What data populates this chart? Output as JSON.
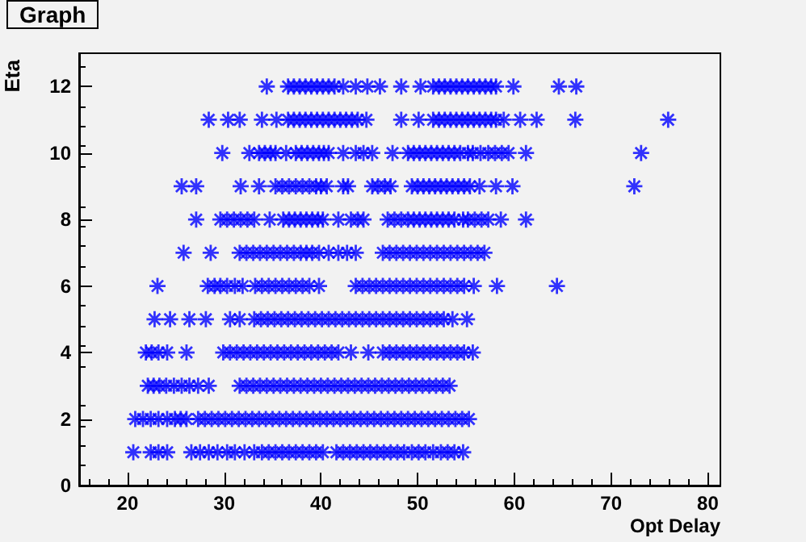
{
  "chart_data": {
    "type": "scatter",
    "title": "Graph",
    "xlabel": "Opt Delay",
    "ylabel": "Eta",
    "marker": "cross",
    "grid": false,
    "xlim": [
      15,
      81.3
    ],
    "xticks": [
      20,
      30,
      40,
      50,
      60,
      70,
      80
    ],
    "ylim": [
      0,
      13
    ],
    "yticks": [
      0,
      2,
      4,
      6,
      8,
      10,
      12
    ],
    "series": [
      {
        "color": "#0000ff",
        "x": [
          34.4,
          36.6,
          37.2,
          37.8,
          38.4,
          39,
          39.6,
          40.2,
          40.8,
          41.4,
          42.3,
          43.6,
          44.8,
          46.1,
          48.3,
          50.3,
          51.6,
          52.2,
          52.8,
          53.4,
          54,
          54.6,
          55.2,
          55.8,
          56.4,
          57,
          57.6,
          58.1,
          59.9,
          64.6,
          66.4
        ],
        "values": [
          12,
          12,
          12,
          12,
          12,
          12,
          12,
          12,
          12,
          12,
          12,
          12,
          12,
          12,
          12,
          12,
          12,
          12,
          12,
          12,
          12,
          12,
          12,
          12,
          12,
          12,
          12,
          12,
          12,
          12,
          12
        ]
      },
      {
        "color": "#0000ff",
        "x": [
          28.4,
          30.4,
          31.6,
          33.9,
          35.4,
          36.6,
          37.2,
          37.8,
          38.4,
          39,
          39.6,
          40.2,
          40.8,
          41.4,
          42,
          42.6,
          43.2,
          43.8,
          44.7,
          48.3,
          50.1,
          51.6,
          52.2,
          52.8,
          53.4,
          54,
          54.6,
          55.2,
          55.8,
          56.4,
          57,
          57.6,
          58.1,
          58.9,
          60.6,
          62.3,
          66.3,
          75.9
        ],
        "values": [
          11,
          11,
          11,
          11,
          11,
          11,
          11,
          11,
          11,
          11,
          11,
          11,
          11,
          11,
          11,
          11,
          11,
          11,
          11,
          11,
          11,
          11,
          11,
          11,
          11,
          11,
          11,
          11,
          11,
          11,
          11,
          11,
          11,
          11,
          11,
          11,
          11,
          11
        ]
      },
      {
        "color": "#0000ff",
        "x": [
          29.8,
          32.6,
          33.6,
          34.2,
          34.8,
          35.3,
          36.4,
          37.4,
          38,
          38.6,
          39.2,
          39.8,
          40.3,
          40.8,
          42.3,
          43.6,
          44.4,
          45.3,
          47.4,
          49,
          49.6,
          50.2,
          50.8,
          51.4,
          52,
          52.6,
          53.2,
          53.8,
          54.4,
          55.2,
          55.7,
          56.5,
          57.3,
          58,
          58.7,
          59.4,
          61.2,
          73.1
        ],
        "values": [
          10,
          10,
          10,
          10,
          10,
          10,
          10,
          10,
          10,
          10,
          10,
          10,
          10,
          10,
          10,
          10,
          10,
          10,
          10,
          10,
          10,
          10,
          10,
          10,
          10,
          10,
          10,
          10,
          10,
          10,
          10,
          10,
          10,
          10,
          10,
          10,
          10,
          10
        ]
      },
      {
        "color": "#0000ff",
        "x": [
          25.6,
          27.1,
          31.7,
          33.6,
          35.3,
          36,
          36.7,
          37.4,
          38.1,
          38.8,
          39.5,
          40,
          40.6,
          42.3,
          42.8,
          45.3,
          45.9,
          46.6,
          47.2,
          49.4,
          50,
          50.6,
          51.2,
          51.8,
          52.4,
          53,
          53.6,
          54.2,
          54.8,
          55.4,
          56.4,
          58.1,
          59.8,
          72.4
        ],
        "values": [
          9,
          9,
          9,
          9,
          9,
          9,
          9,
          9,
          9,
          9,
          9,
          9,
          9,
          9,
          9,
          9,
          9,
          9,
          9,
          9,
          9,
          9,
          9,
          9,
          9,
          9,
          9,
          9,
          9,
          9,
          9,
          9,
          9,
          9
        ]
      },
      {
        "color": "#0000ff",
        "x": [
          27.1,
          29.6,
          30.3,
          31,
          31.7,
          32.4,
          33.1,
          34.7,
          36.1,
          36.7,
          37.3,
          37.9,
          38.5,
          39.1,
          39.7,
          40.2,
          41.8,
          43.1,
          43.8,
          44.4,
          46.9,
          47.6,
          48.3,
          49,
          49.6,
          50.2,
          50.8,
          51.4,
          52,
          52.6,
          53.2,
          53.8,
          54.7,
          55.2,
          55.9,
          56.6,
          57.3,
          58.6,
          61.2
        ],
        "values": [
          8,
          8,
          8,
          8,
          8,
          8,
          8,
          8,
          8,
          8,
          8,
          8,
          8,
          8,
          8,
          8,
          8,
          8,
          8,
          8,
          8,
          8,
          8,
          8,
          8,
          8,
          8,
          8,
          8,
          8,
          8,
          8,
          8,
          8,
          8,
          8,
          8,
          8,
          8
        ]
      },
      {
        "color": "#0000ff",
        "x": [
          25.8,
          28.6,
          31.6,
          32.3,
          33,
          33.7,
          34.4,
          35.1,
          35.8,
          36.5,
          37.2,
          37.9,
          38.5,
          39.1,
          39.8,
          40.8,
          41.8,
          42.7,
          43.6,
          46.4,
          47.1,
          47.8,
          48.5,
          49.2,
          49.9,
          50.6,
          51.3,
          52,
          52.7,
          53.4,
          54.1,
          54.8,
          55.5,
          56.2,
          56.9
        ],
        "values": [
          7,
          7,
          7,
          7,
          7,
          7,
          7,
          7,
          7,
          7,
          7,
          7,
          7,
          7,
          7,
          7,
          7,
          7,
          7,
          7,
          7,
          7,
          7,
          7,
          7,
          7,
          7,
          7,
          7,
          7,
          7,
          7,
          7,
          7,
          7
        ]
      },
      {
        "color": "#0000ff",
        "x": [
          23.1,
          28.3,
          29,
          29.6,
          30.3,
          31.1,
          31.9,
          33.2,
          33.9,
          34.6,
          35.3,
          36,
          36.7,
          37.4,
          38.1,
          38.8,
          39.8,
          43.6,
          44.3,
          45,
          45.7,
          46.4,
          47.1,
          47.8,
          48.5,
          49.2,
          49.9,
          50.6,
          51.3,
          52,
          52.7,
          53.4,
          54.1,
          54.8,
          55.8,
          58.2,
          64.4
        ],
        "values": [
          6,
          6,
          6,
          6,
          6,
          6,
          6,
          6,
          6,
          6,
          6,
          6,
          6,
          6,
          6,
          6,
          6,
          6,
          6,
          6,
          6,
          6,
          6,
          6,
          6,
          6,
          6,
          6,
          6,
          6,
          6,
          6,
          6,
          6,
          6,
          6,
          6
        ]
      },
      {
        "color": "#0000ff",
        "x": [
          22.8,
          24.4,
          26.4,
          28.1,
          30.6,
          31.6,
          33.1,
          33.8,
          34.5,
          35.2,
          35.9,
          36.6,
          37.3,
          38,
          38.7,
          39.4,
          40.1,
          40.8,
          41.5,
          42.2,
          42.9,
          43.6,
          44.3,
          45,
          45.7,
          46.4,
          47.1,
          47.8,
          48.5,
          49.2,
          49.9,
          50.6,
          51.3,
          52,
          52.7,
          53.6,
          55.1
        ],
        "values": [
          5,
          5,
          5,
          5,
          5,
          5,
          5,
          5,
          5,
          5,
          5,
          5,
          5,
          5,
          5,
          5,
          5,
          5,
          5,
          5,
          5,
          5,
          5,
          5,
          5,
          5,
          5,
          5,
          5,
          5,
          5,
          5,
          5,
          5,
          5,
          5,
          5
        ]
      },
      {
        "color": "#0000ff",
        "x": [
          21.9,
          22.5,
          23.2,
          24.1,
          26.1,
          29.9,
          30.6,
          31.3,
          32,
          32.7,
          33.4,
          34.1,
          34.8,
          35.5,
          36.2,
          36.9,
          37.6,
          38.3,
          39,
          39.7,
          40.4,
          41.1,
          41.8,
          43.1,
          44.9,
          46.4,
          47.1,
          47.8,
          48.5,
          49.2,
          49.9,
          50.6,
          51.3,
          52,
          52.7,
          53.4,
          54.1,
          54.8,
          55.7
        ],
        "values": [
          4,
          4,
          4,
          4,
          4,
          4,
          4,
          4,
          4,
          4,
          4,
          4,
          4,
          4,
          4,
          4,
          4,
          4,
          4,
          4,
          4,
          4,
          4,
          4,
          4,
          4,
          4,
          4,
          4,
          4,
          4,
          4,
          4,
          4,
          4,
          4,
          4,
          4,
          4
        ]
      },
      {
        "color": "#0000ff",
        "x": [
          22.1,
          22.7,
          23.3,
          24,
          24.8,
          25.6,
          26.4,
          27.3,
          28.4,
          31.6,
          32.3,
          33,
          33.7,
          34.4,
          35.1,
          35.8,
          36.5,
          37.2,
          37.9,
          38.6,
          39.3,
          40,
          40.7,
          41.4,
          42.1,
          42.8,
          43.5,
          44.2,
          44.9,
          45.6,
          46.3,
          47,
          47.7,
          48.4,
          49.1,
          49.8,
          50.5,
          51.2,
          51.9,
          52.6,
          53.3
        ],
        "values": [
          3,
          3,
          3,
          3,
          3,
          3,
          3,
          3,
          3,
          3,
          3,
          3,
          3,
          3,
          3,
          3,
          3,
          3,
          3,
          3,
          3,
          3,
          3,
          3,
          3,
          3,
          3,
          3,
          3,
          3,
          3,
          3,
          3,
          3,
          3,
          3,
          3,
          3,
          3,
          3,
          3
        ]
      },
      {
        "color": "#0000ff",
        "x": [
          20.8,
          21.6,
          22.4,
          23.2,
          24.1,
          24.9,
          25.5,
          26.1,
          27.3,
          28,
          28.7,
          29.4,
          30.1,
          30.8,
          31.5,
          32.2,
          32.9,
          33.6,
          34.3,
          35,
          35.7,
          36.4,
          37.1,
          37.8,
          38.5,
          39.2,
          39.9,
          40.6,
          41.3,
          42,
          42.7,
          43.4,
          44.1,
          44.8,
          45.5,
          46.2,
          46.9,
          47.6,
          48.3,
          49,
          49.7,
          50.4,
          51.1,
          51.8,
          52.5,
          53.2,
          53.9,
          54.6,
          55.3
        ],
        "values": [
          2,
          2,
          2,
          2,
          2,
          2,
          2,
          2,
          2,
          2,
          2,
          2,
          2,
          2,
          2,
          2,
          2,
          2,
          2,
          2,
          2,
          2,
          2,
          2,
          2,
          2,
          2,
          2,
          2,
          2,
          2,
          2,
          2,
          2,
          2,
          2,
          2,
          2,
          2,
          2,
          2,
          2,
          2,
          2,
          2,
          2,
          2,
          2,
          2
        ]
      },
      {
        "color": "#0000ff",
        "x": [
          20.6,
          22.4,
          23.2,
          24.1,
          26.6,
          27.5,
          28.4,
          29.3,
          30.3,
          31.1,
          32.1,
          33.1,
          33.9,
          34.6,
          35.3,
          36,
          36.7,
          37.4,
          38.1,
          38.8,
          39.5,
          40.2,
          41.6,
          42.3,
          43,
          43.7,
          44.4,
          45.1,
          45.8,
          46.5,
          47.2,
          47.9,
          48.6,
          49.4,
          50.1,
          50.8,
          51.6,
          52.4,
          53.1,
          53.8,
          54.7
        ],
        "values": [
          1,
          1,
          1,
          1,
          1,
          1,
          1,
          1,
          1,
          1,
          1,
          1,
          1,
          1,
          1,
          1,
          1,
          1,
          1,
          1,
          1,
          1,
          1,
          1,
          1,
          1,
          1,
          1,
          1,
          1,
          1,
          1,
          1,
          1,
          1,
          1,
          1,
          1,
          1,
          1,
          1
        ]
      }
    ]
  }
}
